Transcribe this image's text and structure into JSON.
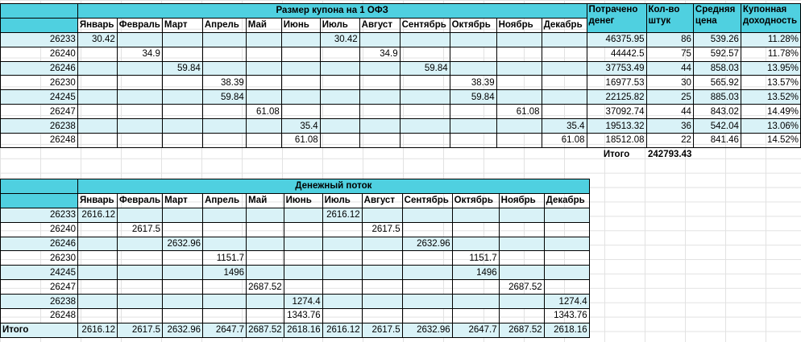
{
  "table1": {
    "title": "Размер купона на 1 ОФЗ",
    "months": [
      "Январь",
      "Февраль",
      "Март",
      "Апрель",
      "Май",
      "Июнь",
      "Июль",
      "Август",
      "Сентябрь",
      "Октябрь",
      "Ноябрь",
      "Декабрь"
    ],
    "extra_headers": [
      "Потрачено денег",
      "Кол-во штук",
      "Средняя цена",
      "Купонная доходность"
    ],
    "rows": [
      {
        "id": "26233",
        "cells": [
          "30.42",
          "",
          "",
          "",
          "",
          "",
          "30.42",
          "",
          "",
          "",
          "",
          ""
        ],
        "spent": "46375.95",
        "qty": "86",
        "avg": "539.26",
        "yield": "11.28%"
      },
      {
        "id": "26240",
        "cells": [
          "",
          "34.9",
          "",
          "",
          "",
          "",
          "",
          "34.9",
          "",
          "",
          "",
          ""
        ],
        "spent": "44442.5",
        "qty": "75",
        "avg": "592.57",
        "yield": "11.78%"
      },
      {
        "id": "26246",
        "cells": [
          "",
          "",
          "59.84",
          "",
          "",
          "",
          "",
          "",
          "59.84",
          "",
          "",
          ""
        ],
        "spent": "37753.49",
        "qty": "44",
        "avg": "858.03",
        "yield": "13.95%"
      },
      {
        "id": "26230",
        "cells": [
          "",
          "",
          "",
          "38.39",
          "",
          "",
          "",
          "",
          "",
          "38.39",
          "",
          ""
        ],
        "spent": "16977.53",
        "qty": "30",
        "avg": "565.92",
        "yield": "13.57%"
      },
      {
        "id": "24245",
        "cells": [
          "",
          "",
          "",
          "59.84",
          "",
          "",
          "",
          "",
          "",
          "59.84",
          "",
          ""
        ],
        "spent": "22125.82",
        "qty": "25",
        "avg": "885.03",
        "yield": "13.52%"
      },
      {
        "id": "26247",
        "cells": [
          "",
          "",
          "",
          "",
          "61.08",
          "",
          "",
          "",
          "",
          "",
          "61.08",
          ""
        ],
        "spent": "37092.74",
        "qty": "44",
        "avg": "843.02",
        "yield": "14.49%"
      },
      {
        "id": "26238",
        "cells": [
          "",
          "",
          "",
          "",
          "",
          "35.4",
          "",
          "",
          "",
          "",
          "",
          "35.4"
        ],
        "spent": "19513.32",
        "qty": "36",
        "avg": "542.04",
        "yield": "13.06%"
      },
      {
        "id": "26248",
        "cells": [
          "",
          "",
          "",
          "",
          "",
          "61.08",
          "",
          "",
          "",
          "",
          "",
          "61.08"
        ],
        "spent": "18512.08",
        "qty": "22",
        "avg": "841.46",
        "yield": "14.52%"
      }
    ],
    "total_label": "Итого",
    "total_value": "242793.43"
  },
  "table2": {
    "title": "Денежный поток",
    "months": [
      "Январь",
      "Февраль",
      "Март",
      "Апрель",
      "Май",
      "Июнь",
      "Июль",
      "Август",
      "Сентябрь",
      "Октябрь",
      "Ноябрь",
      "Декабрь"
    ],
    "rows": [
      {
        "id": "26233",
        "cells": [
          "2616.12",
          "",
          "",
          "",
          "",
          "",
          "2616.12",
          "",
          "",
          "",
          "",
          ""
        ]
      },
      {
        "id": "26240",
        "cells": [
          "",
          "2617.5",
          "",
          "",
          "",
          "",
          "",
          "2617.5",
          "",
          "",
          "",
          ""
        ]
      },
      {
        "id": "26246",
        "cells": [
          "",
          "",
          "2632.96",
          "",
          "",
          "",
          "",
          "",
          "2632.96",
          "",
          "",
          ""
        ]
      },
      {
        "id": "26230",
        "cells": [
          "",
          "",
          "",
          "1151.7",
          "",
          "",
          "",
          "",
          "",
          "1151.7",
          "",
          ""
        ]
      },
      {
        "id": "24245",
        "cells": [
          "",
          "",
          "",
          "1496",
          "",
          "",
          "",
          "",
          "",
          "1496",
          "",
          ""
        ]
      },
      {
        "id": "26247",
        "cells": [
          "",
          "",
          "",
          "",
          "2687.52",
          "",
          "",
          "",
          "",
          "",
          "2687.52",
          ""
        ]
      },
      {
        "id": "26238",
        "cells": [
          "",
          "",
          "",
          "",
          "",
          "1274.4",
          "",
          "",
          "",
          "",
          "",
          "1274.4"
        ]
      },
      {
        "id": "26248",
        "cells": [
          "",
          "",
          "",
          "",
          "",
          "1343.76",
          "",
          "",
          "",
          "",
          "",
          "1343.76"
        ]
      }
    ],
    "total_label": "Итого",
    "totals": [
      "2616.12",
      "2617.5",
      "2632.96",
      "2647.7",
      "2687.52",
      "2618.16",
      "2616.12",
      "2617.5",
      "2632.96",
      "2647.7",
      "2687.52",
      "2618.16"
    ]
  },
  "colors": {
    "header": "#4fd0e0",
    "alt_row": "#d9f2f7"
  }
}
